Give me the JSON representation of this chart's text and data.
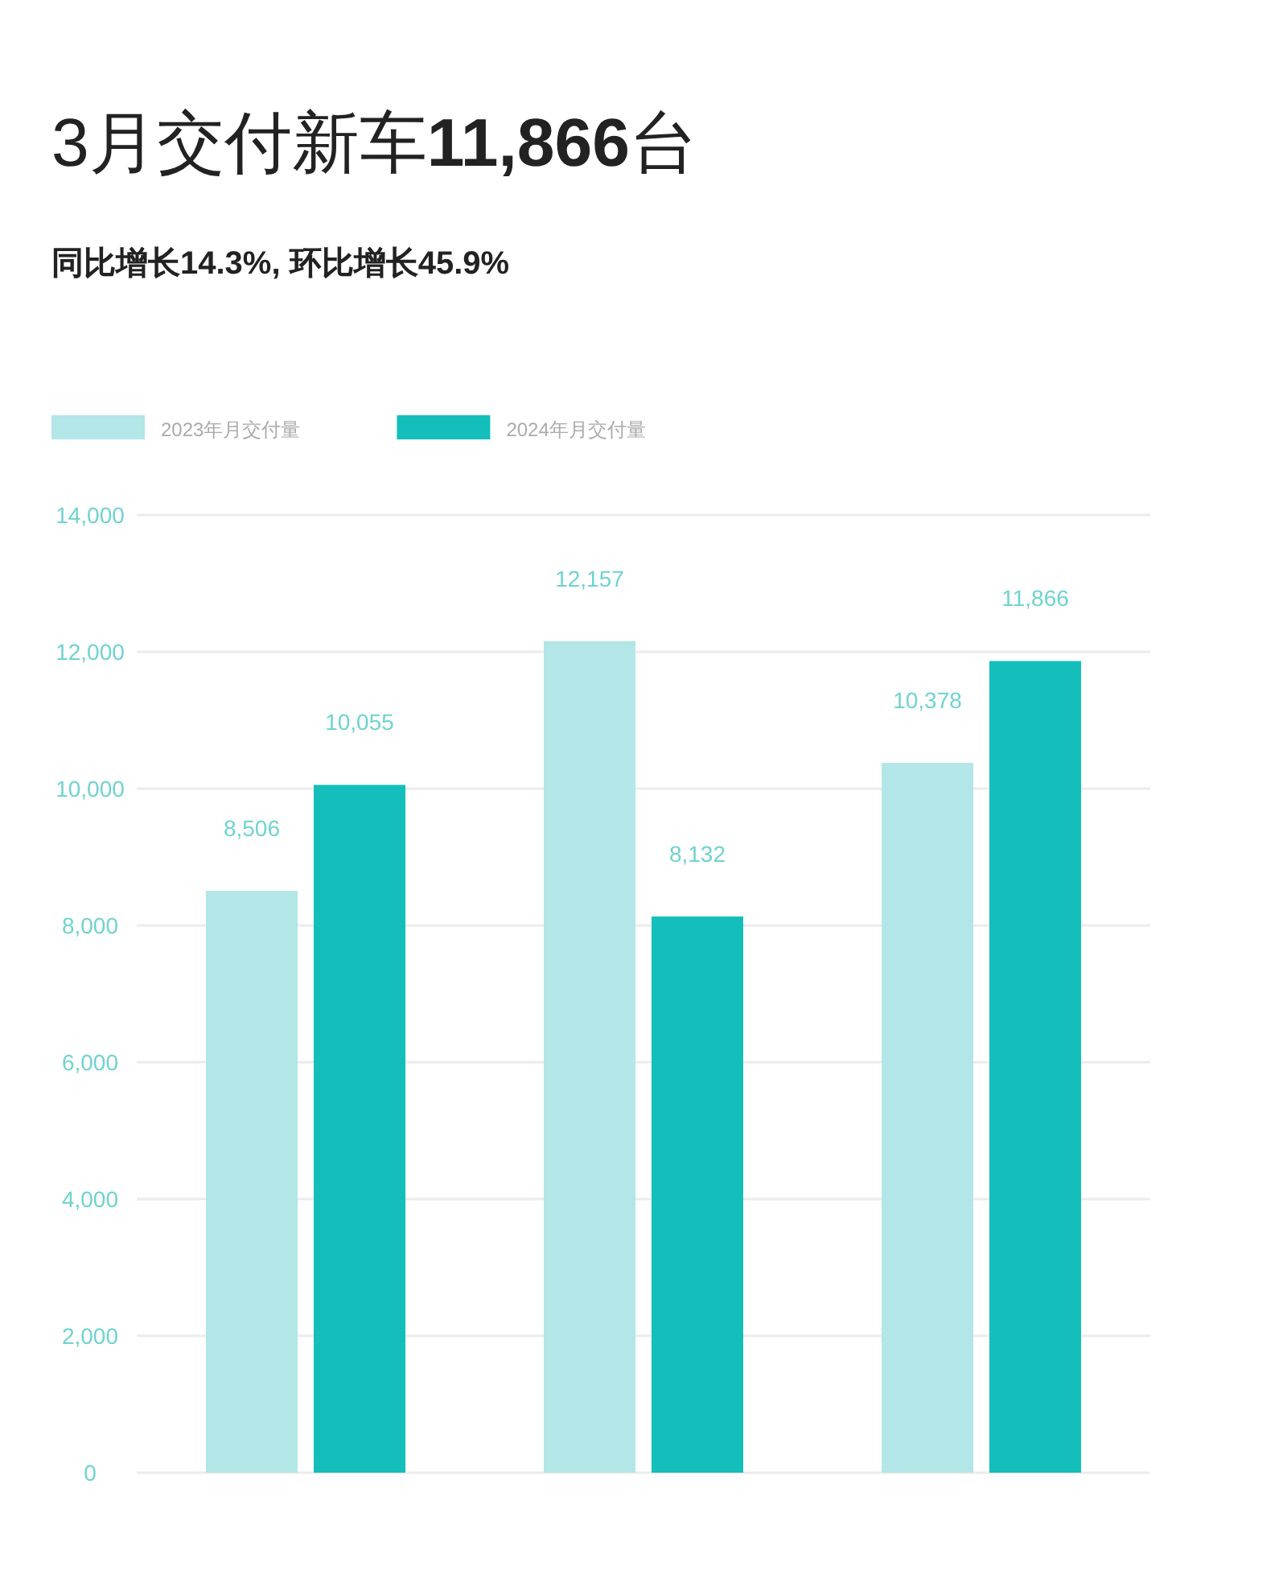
{
  "chart_data": {
    "type": "bar",
    "title": "3月交付新车11,866台",
    "subtitle": "同比增长14.3%, 环比增长45.9%",
    "categories": [
      null,
      null,
      null
    ],
    "series": [
      {
        "name": "2023年月交付量",
        "color": "#b3e6e6",
        "values": [
          8506,
          12157,
          10378
        ],
        "value_labels": [
          "8,506",
          "12,157",
          "10,378"
        ]
      },
      {
        "name": "2024年月交付量",
        "color": "#14bfbb",
        "values": [
          10055,
          8132,
          11866
        ],
        "value_labels": [
          "10,055",
          "8,132",
          "11,866"
        ]
      }
    ],
    "ylim": [
      0,
      14000
    ],
    "yticks": [
      0,
      {
        "value": 2000,
        "label": "2,000"
      },
      {
        "value": 4000,
        "label": "4,000"
      },
      {
        "value": 6000,
        "label": "6,000"
      },
      {
        "value": 8000,
        "label": "8,000"
      },
      {
        "value": 10000,
        "label": "10,000"
      },
      {
        "value": 12000,
        "label": "12,000"
      },
      {
        "value": 14000,
        "label": "14,000"
      }
    ],
    "grid": "y",
    "legend": "top left"
  }
}
